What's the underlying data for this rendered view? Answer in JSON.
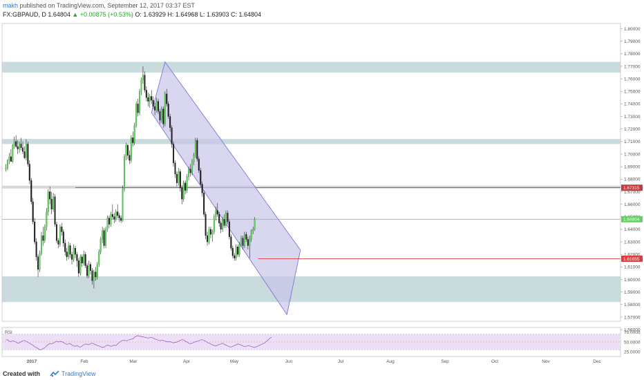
{
  "header": {
    "user": "makh",
    "published": " published on TradingView.com, September 12, 2017 03:37 EST",
    "symbol": "FX:GBPAUD, D  1.64804",
    "change": "▲ +0.00875 (+0.53%)",
    "ohlc": "O: 1.63929  H: 1.64968  L: 1.63903  C: 1.64804"
  },
  "colors": {
    "up": "#5fd25a",
    "down": "#222222",
    "zone": "#b7cfd0",
    "channel_fill": "#c9c4ea",
    "channel_stroke": "#7d75d9",
    "current_price": "#6bd36b",
    "support_line": "#e03b3b",
    "resistance_line": "#a04848",
    "rsi_band": "#eadcf5",
    "rsi_line": "#9a4fb8"
  },
  "chart_data": {
    "type": "candlestick",
    "symbol": "GBPAUD",
    "timeframe": "D",
    "ylim": [
      1.555,
      1.805
    ],
    "yticks": [
      "1.80000",
      "1.79000",
      "1.78000",
      "1.77000",
      "1.76000",
      "1.75000",
      "1.74000",
      "1.73000",
      "1.72000",
      "1.71000",
      "1.70000",
      "1.69000",
      "1.68000",
      "1.67000",
      "1.66000",
      "1.65000",
      "1.64000",
      "1.63000",
      "1.62000",
      "1.61000",
      "1.60000",
      "1.59000",
      "1.58000",
      "1.57000",
      "1.56000"
    ],
    "xlabels": [
      "2017",
      "Feb",
      "Mar",
      "Apr",
      "May",
      "Jun",
      "Jul",
      "Aug",
      "Sep",
      "Oct",
      "Nov",
      "Dec"
    ],
    "zones": [
      {
        "y1": 1.765,
        "y2": 1.7735
      },
      {
        "y1": 1.708,
        "y2": 1.712
      },
      {
        "y1": 1.582,
        "y2": 1.6025
      }
    ],
    "resistance_band": {
      "y1": 1.6725,
      "y2": 1.6748
    },
    "price_tags": [
      {
        "label": "1.67315",
        "value": 1.67315,
        "color": "#c33a3a"
      },
      {
        "label": "1.64804",
        "value": 1.64804,
        "color": "#5fd25a"
      },
      {
        "label": "1.61655",
        "value": 1.61655,
        "color": "#e03b3b"
      }
    ],
    "current_price": 1.64804,
    "support_level": 1.61655,
    "channel": {
      "upper_start": {
        "day": 94,
        "price": 1.7735
      },
      "upper_end": {
        "day": 174,
        "price": 1.6235
      },
      "lower_start": {
        "day": 86,
        "price": 1.733
      },
      "lower_end": {
        "day": 166,
        "price": 1.572
      }
    },
    "rsi": {
      "label": "RSI",
      "yticks": [
        "75.0000",
        "50.0000",
        "25.0000"
      ],
      "band": [
        30,
        70
      ],
      "values": [
        55,
        56,
        52,
        51,
        53,
        52,
        50,
        47,
        48,
        51,
        53,
        54,
        52,
        49,
        47,
        44,
        42,
        38,
        36,
        33,
        30,
        31,
        33,
        35,
        40,
        44,
        46,
        45,
        47,
        50,
        52,
        50,
        52,
        51,
        49,
        46,
        44,
        45,
        46,
        42,
        40,
        39,
        41,
        38,
        37,
        40,
        43,
        45,
        44,
        43,
        46,
        47,
        45,
        43,
        41,
        40,
        38,
        36,
        37,
        40,
        42,
        41,
        39,
        40,
        42,
        41,
        45,
        49,
        52,
        54,
        55,
        53,
        54,
        56,
        57,
        58,
        62,
        65,
        66,
        65,
        64,
        63,
        62,
        61,
        60,
        61,
        62,
        60,
        58,
        56,
        55,
        53,
        55,
        54,
        52,
        51,
        50,
        51,
        49,
        48,
        49,
        50,
        52,
        54,
        56,
        55,
        52,
        50,
        47,
        45,
        47,
        49,
        51,
        52,
        53,
        55,
        56,
        54,
        52,
        49,
        47,
        45,
        43,
        41,
        40,
        42,
        44,
        45,
        47,
        44,
        42,
        40,
        38,
        37,
        39,
        41,
        43,
        45,
        44,
        42,
        40,
        38,
        39,
        41,
        40,
        38,
        37,
        36,
        38,
        40,
        42,
        44,
        46,
        48,
        52,
        56,
        60,
        62
      ]
    },
    "candles": [
      [
        1.688,
        1.692,
        1.686,
        1.689
      ],
      [
        1.689,
        1.696,
        1.687,
        1.695
      ],
      [
        1.695,
        1.701,
        1.692,
        1.698
      ],
      [
        1.698,
        1.704,
        1.694,
        1.694
      ],
      [
        1.694,
        1.708,
        1.693,
        1.707
      ],
      [
        1.707,
        1.714,
        1.704,
        1.71
      ],
      [
        1.71,
        1.715,
        1.705,
        1.706
      ],
      [
        1.706,
        1.711,
        1.7,
        1.704
      ],
      [
        1.704,
        1.71,
        1.701,
        1.708
      ],
      [
        1.708,
        1.713,
        1.703,
        1.705
      ],
      [
        1.705,
        1.71,
        1.7,
        1.702
      ],
      [
        1.702,
        1.706,
        1.696,
        1.697
      ],
      [
        1.697,
        1.712,
        1.695,
        1.708
      ],
      [
        1.708,
        1.71,
        1.69,
        1.692
      ],
      [
        1.692,
        1.695,
        1.676,
        1.679
      ],
      [
        1.679,
        1.681,
        1.66,
        1.662
      ],
      [
        1.662,
        1.665,
        1.644,
        1.646
      ],
      [
        1.646,
        1.649,
        1.628,
        1.63
      ],
      [
        1.63,
        1.633,
        1.615,
        1.618
      ],
      [
        1.618,
        1.62,
        1.602,
        1.608
      ],
      [
        1.608,
        1.623,
        1.606,
        1.621
      ],
      [
        1.621,
        1.638,
        1.619,
        1.635
      ],
      [
        1.635,
        1.642,
        1.627,
        1.631
      ],
      [
        1.631,
        1.644,
        1.629,
        1.642
      ],
      [
        1.642,
        1.657,
        1.639,
        1.654
      ],
      [
        1.654,
        1.672,
        1.651,
        1.67
      ],
      [
        1.67,
        1.674,
        1.66,
        1.664
      ],
      [
        1.664,
        1.67,
        1.652,
        1.656
      ],
      [
        1.656,
        1.669,
        1.654,
        1.666
      ],
      [
        1.666,
        1.668,
        1.642,
        1.644
      ],
      [
        1.644,
        1.646,
        1.629,
        1.631
      ],
      [
        1.631,
        1.633,
        1.625,
        1.628
      ],
      [
        1.628,
        1.644,
        1.626,
        1.642
      ],
      [
        1.642,
        1.645,
        1.635,
        1.638
      ],
      [
        1.638,
        1.64,
        1.626,
        1.629
      ],
      [
        1.629,
        1.632,
        1.619,
        1.622
      ],
      [
        1.622,
        1.625,
        1.615,
        1.618
      ],
      [
        1.618,
        1.63,
        1.616,
        1.627
      ],
      [
        1.627,
        1.629,
        1.617,
        1.62
      ],
      [
        1.62,
        1.622,
        1.612,
        1.616
      ],
      [
        1.616,
        1.628,
        1.614,
        1.625
      ],
      [
        1.625,
        1.627,
        1.617,
        1.62
      ],
      [
        1.62,
        1.622,
        1.61,
        1.615
      ],
      [
        1.615,
        1.617,
        1.602,
        1.605
      ],
      [
        1.605,
        1.62,
        1.603,
        1.618
      ],
      [
        1.618,
        1.62,
        1.61,
        1.613
      ],
      [
        1.613,
        1.623,
        1.611,
        1.62
      ],
      [
        1.62,
        1.622,
        1.609,
        1.611
      ],
      [
        1.611,
        1.613,
        1.601,
        1.603
      ],
      [
        1.603,
        1.615,
        1.601,
        1.612
      ],
      [
        1.612,
        1.614,
        1.604,
        1.607
      ],
      [
        1.607,
        1.609,
        1.596,
        1.599
      ],
      [
        1.599,
        1.608,
        1.593,
        1.606
      ],
      [
        1.606,
        1.61,
        1.599,
        1.602
      ],
      [
        1.602,
        1.614,
        1.6,
        1.612
      ],
      [
        1.612,
        1.624,
        1.61,
        1.622
      ],
      [
        1.622,
        1.634,
        1.62,
        1.632
      ],
      [
        1.632,
        1.642,
        1.629,
        1.639
      ],
      [
        1.639,
        1.641,
        1.625,
        1.627
      ],
      [
        1.627,
        1.642,
        1.625,
        1.64
      ],
      [
        1.64,
        1.651,
        1.638,
        1.649
      ],
      [
        1.649,
        1.651,
        1.641,
        1.644
      ],
      [
        1.644,
        1.654,
        1.642,
        1.652
      ],
      [
        1.652,
        1.66,
        1.648,
        1.65
      ],
      [
        1.65,
        1.653,
        1.645,
        1.648
      ],
      [
        1.648,
        1.656,
        1.646,
        1.654
      ],
      [
        1.654,
        1.66,
        1.649,
        1.651
      ],
      [
        1.651,
        1.653,
        1.646,
        1.649
      ],
      [
        1.649,
        1.651,
        1.645,
        1.647
      ],
      [
        1.647,
        1.675,
        1.646,
        1.672
      ],
      [
        1.672,
        1.7,
        1.67,
        1.698
      ],
      [
        1.698,
        1.709,
        1.695,
        1.707
      ],
      [
        1.707,
        1.708,
        1.696,
        1.699
      ],
      [
        1.699,
        1.703,
        1.692,
        1.695
      ],
      [
        1.695,
        1.715,
        1.693,
        1.713
      ],
      [
        1.713,
        1.718,
        1.706,
        1.709
      ],
      [
        1.709,
        1.725,
        1.707,
        1.723
      ],
      [
        1.723,
        1.742,
        1.721,
        1.74
      ],
      [
        1.74,
        1.744,
        1.73,
        1.733
      ],
      [
        1.733,
        1.752,
        1.731,
        1.75
      ],
      [
        1.75,
        1.761,
        1.747,
        1.759
      ],
      [
        1.759,
        1.77,
        1.756,
        1.763
      ],
      [
        1.763,
        1.766,
        1.749,
        1.751
      ],
      [
        1.751,
        1.754,
        1.742,
        1.745
      ],
      [
        1.745,
        1.749,
        1.738,
        1.742
      ],
      [
        1.742,
        1.748,
        1.737,
        1.746
      ],
      [
        1.746,
        1.751,
        1.74,
        1.743
      ],
      [
        1.743,
        1.746,
        1.736,
        1.738
      ],
      [
        1.738,
        1.741,
        1.731,
        1.735
      ],
      [
        1.735,
        1.745,
        1.733,
        1.742
      ],
      [
        1.742,
        1.744,
        1.732,
        1.734
      ],
      [
        1.734,
        1.736,
        1.724,
        1.727
      ],
      [
        1.727,
        1.738,
        1.725,
        1.736
      ],
      [
        1.736,
        1.738,
        1.721,
        1.724
      ],
      [
        1.724,
        1.75,
        1.722,
        1.748
      ],
      [
        1.748,
        1.752,
        1.738,
        1.74
      ],
      [
        1.74,
        1.742,
        1.728,
        1.73
      ],
      [
        1.73,
        1.732,
        1.718,
        1.721
      ],
      [
        1.721,
        1.723,
        1.705,
        1.708
      ],
      [
        1.708,
        1.71,
        1.69,
        1.693
      ],
      [
        1.693,
        1.695,
        1.681,
        1.684
      ],
      [
        1.684,
        1.686,
        1.674,
        1.677
      ],
      [
        1.677,
        1.689,
        1.675,
        1.686
      ],
      [
        1.686,
        1.688,
        1.67,
        1.673
      ],
      [
        1.673,
        1.675,
        1.66,
        1.664
      ],
      [
        1.664,
        1.679,
        1.662,
        1.677
      ],
      [
        1.677,
        1.679,
        1.668,
        1.671
      ],
      [
        1.671,
        1.684,
        1.669,
        1.682
      ],
      [
        1.682,
        1.69,
        1.679,
        1.688
      ],
      [
        1.688,
        1.692,
        1.682,
        1.685
      ],
      [
        1.685,
        1.696,
        1.683,
        1.694
      ],
      [
        1.694,
        1.701,
        1.691,
        1.699
      ],
      [
        1.699,
        1.713,
        1.697,
        1.711
      ],
      [
        1.711,
        1.713,
        1.694,
        1.696
      ],
      [
        1.696,
        1.698,
        1.685,
        1.687
      ],
      [
        1.687,
        1.689,
        1.674,
        1.676
      ],
      [
        1.676,
        1.678,
        1.666,
        1.669
      ],
      [
        1.669,
        1.671,
        1.65,
        1.652
      ],
      [
        1.652,
        1.654,
        1.632,
        1.635
      ],
      [
        1.635,
        1.638,
        1.627,
        1.63
      ],
      [
        1.63,
        1.642,
        1.628,
        1.64
      ],
      [
        1.64,
        1.642,
        1.633,
        1.636
      ],
      [
        1.636,
        1.64,
        1.63,
        1.638
      ],
      [
        1.638,
        1.652,
        1.636,
        1.65
      ],
      [
        1.65,
        1.658,
        1.647,
        1.655
      ],
      [
        1.655,
        1.661,
        1.65,
        1.652
      ],
      [
        1.652,
        1.654,
        1.642,
        1.645
      ],
      [
        1.645,
        1.647,
        1.637,
        1.64
      ],
      [
        1.64,
        1.65,
        1.638,
        1.648
      ],
      [
        1.648,
        1.652,
        1.641,
        1.643
      ],
      [
        1.643,
        1.655,
        1.641,
        1.653
      ],
      [
        1.653,
        1.655,
        1.644,
        1.646
      ],
      [
        1.646,
        1.648,
        1.632,
        1.634
      ],
      [
        1.634,
        1.636,
        1.623,
        1.625
      ],
      [
        1.625,
        1.627,
        1.617,
        1.619
      ],
      [
        1.619,
        1.621,
        1.615,
        1.617
      ],
      [
        1.617,
        1.628,
        1.615,
        1.626
      ],
      [
        1.626,
        1.628,
        1.618,
        1.62
      ],
      [
        1.62,
        1.63,
        1.618,
        1.628
      ],
      [
        1.628,
        1.635,
        1.626,
        1.633
      ],
      [
        1.633,
        1.635,
        1.624,
        1.627
      ],
      [
        1.627,
        1.638,
        1.625,
        1.636
      ],
      [
        1.636,
        1.638,
        1.63,
        1.632
      ],
      [
        1.632,
        1.634,
        1.624,
        1.627
      ],
      [
        1.627,
        1.635,
        1.617,
        1.632
      ],
      [
        1.632,
        1.64,
        1.63,
        1.639
      ],
      [
        1.639,
        1.642,
        1.636,
        1.64
      ],
      [
        1.64,
        1.6497,
        1.639,
        1.648
      ]
    ]
  },
  "footer": {
    "created_with": "Created with",
    "brand": "TradingView"
  }
}
